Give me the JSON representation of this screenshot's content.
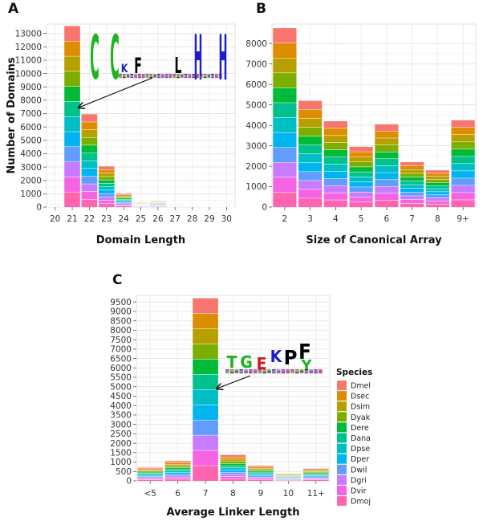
{
  "panels": {
    "a": "A",
    "b": "B",
    "c": "C"
  },
  "legend": {
    "title": "Species",
    "items": [
      "Dmel",
      "Dsec",
      "Dsim",
      "Dyak",
      "Dere",
      "Dana",
      "Dpse",
      "Dper",
      "Dwil",
      "Dgri",
      "Dvir",
      "Dmoj"
    ],
    "colors": [
      "#F8766D",
      "#DE8C00",
      "#B79F00",
      "#7CAE00",
      "#00BA38",
      "#00C08B",
      "#00BFC4",
      "#00B4F0",
      "#619CFF",
      "#C77CFF",
      "#F564E3",
      "#FF64B0"
    ]
  },
  "logos": {
    "a": {
      "letters": [
        "C",
        "C",
        "K",
        "F",
        "L",
        "H",
        "H"
      ],
      "colors": [
        "#1db41d",
        "#1db41d",
        "#1d1dcc",
        "#000000",
        "#000000",
        "#1d1dcc",
        "#1d1dcc"
      ]
    },
    "c": {
      "letters": [
        "T",
        "G",
        "E",
        "K",
        "P",
        "F",
        "Y"
      ],
      "colors": [
        "#1db41d",
        "#1db41d",
        "#d01d1d",
        "#1d1dcc",
        "#000000",
        "#000000",
        "#1db41d"
      ]
    }
  },
  "chart_data": [
    {
      "type": "bar",
      "stacked": true,
      "title": "",
      "xlabel": "Domain Length",
      "ylabel": "Number of Domains",
      "categories": [
        "20",
        "21",
        "22",
        "23",
        "24",
        "25",
        "26",
        "27",
        "28",
        "29",
        "30"
      ],
      "values": [
        200,
        13550,
        6950,
        3050,
        1000,
        330,
        420,
        200,
        110,
        60,
        40
      ],
      "ylim": [
        0,
        13700
      ],
      "yticks": [
        0,
        1000,
        2000,
        3000,
        4000,
        5000,
        6000,
        7000,
        8000,
        9000,
        10000,
        11000,
        12000,
        13000
      ],
      "annotation": {
        "points_to": "21",
        "y": 7450
      }
    },
    {
      "type": "bar",
      "stacked": true,
      "title": "",
      "xlabel": "Size of Canonical Array",
      "ylabel": "",
      "categories": [
        "2",
        "3",
        "4",
        "5",
        "6",
        "7",
        "8",
        "9+"
      ],
      "values": [
        8750,
        5200,
        4200,
        2950,
        4050,
        2200,
        1800,
        4250
      ],
      "ylim": [
        0,
        8950
      ],
      "yticks": [
        0,
        1000,
        2000,
        3000,
        4000,
        5000,
        6000,
        7000,
        8000
      ]
    },
    {
      "type": "bar",
      "stacked": true,
      "title": "",
      "xlabel": "Average Linker Length",
      "ylabel": "",
      "categories": [
        "<5",
        "6",
        "7",
        "8",
        "9",
        "10",
        "11+"
      ],
      "values": [
        700,
        1050,
        9700,
        1380,
        800,
        380,
        650
      ],
      "ylim": [
        0,
        9850
      ],
      "yticks": [
        0,
        500,
        1000,
        1500,
        2000,
        2500,
        3000,
        3500,
        4000,
        4500,
        5000,
        5500,
        6000,
        6500,
        7000,
        7500,
        8000,
        8500,
        9000,
        9500
      ],
      "annotation": {
        "points_to": "7",
        "y": 4900
      }
    }
  ]
}
